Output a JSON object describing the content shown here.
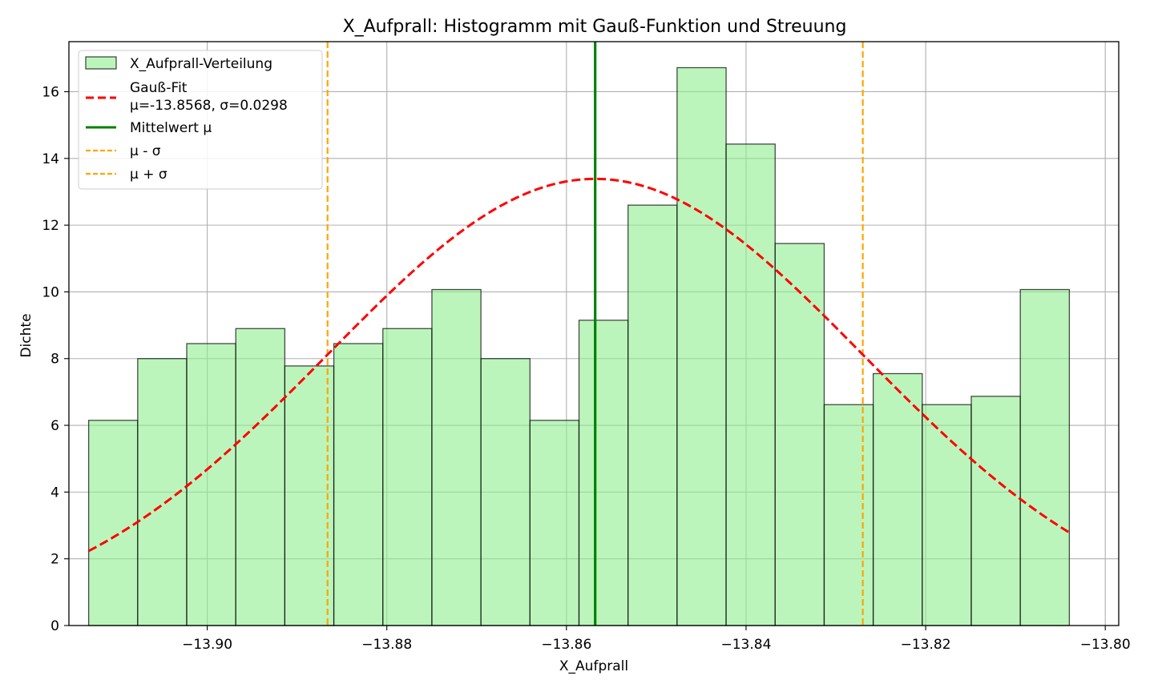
{
  "chart_data": {
    "type": "bar",
    "title": "X_Aufprall: Histogramm mit Gauß-Funktion und Streuung",
    "xlabel": "X_Aufprall",
    "ylabel": "Dichte",
    "xlim": [
      -13.9154,
      -13.7985
    ],
    "ylim": [
      0,
      17.5
    ],
    "grid": true,
    "legend_position": "top-left",
    "x_ticks": [
      {
        "value": -13.9,
        "label": "−13.90"
      },
      {
        "value": -13.88,
        "label": "−13.88"
      },
      {
        "value": -13.86,
        "label": "−13.86"
      },
      {
        "value": -13.84,
        "label": "−13.84"
      },
      {
        "value": -13.82,
        "label": "−13.82"
      },
      {
        "value": -13.8,
        "label": "−13.80"
      }
    ],
    "y_ticks": [
      {
        "value": 0,
        "label": "0"
      },
      {
        "value": 2,
        "label": "2"
      },
      {
        "value": 4,
        "label": "4"
      },
      {
        "value": 6,
        "label": "6"
      },
      {
        "value": 8,
        "label": "8"
      },
      {
        "value": 10,
        "label": "10"
      },
      {
        "value": 12,
        "label": "12"
      },
      {
        "value": 14,
        "label": "14"
      },
      {
        "value": 16,
        "label": "16"
      }
    ],
    "histogram": {
      "name": "X_Aufprall-Verteilung",
      "color": "#90EE90",
      "edge_color": "#000000",
      "bin_edges": [
        -13.9132,
        -13.90774,
        -13.90228,
        -13.89682,
        -13.89136,
        -13.8859,
        -13.88044,
        -13.87498,
        -13.86952,
        -13.86406,
        -13.8586,
        -13.85314,
        -13.84768,
        -13.84222,
        -13.83676,
        -13.8313,
        -13.82584,
        -13.82038,
        -13.81492,
        -13.80946,
        -13.804
      ],
      "values": [
        6.15,
        8.0,
        8.45,
        8.9,
        7.78,
        8.45,
        8.9,
        10.07,
        8.0,
        6.15,
        9.15,
        12.6,
        16.72,
        14.43,
        11.45,
        6.62,
        7.55,
        6.62,
        6.87,
        10.07
      ]
    },
    "gauss_fit": {
      "name_line1": "Gauß-Fit",
      "name_line2": "μ=-13.8568, σ=0.0298",
      "mu": -13.8568,
      "sigma": 0.0298,
      "x_range": [
        -13.9132,
        -13.804
      ],
      "color": "#ff0000"
    },
    "vertical_lines": [
      {
        "name": "Mittelwert μ",
        "x": -13.8568,
        "color": "#008000",
        "style": "solid"
      },
      {
        "name": "μ - σ",
        "x": -13.8866,
        "color": "#FFA500",
        "style": "dashed"
      },
      {
        "name": "μ + σ",
        "x": -13.827,
        "color": "#FFA500",
        "style": "dashed"
      }
    ]
  }
}
